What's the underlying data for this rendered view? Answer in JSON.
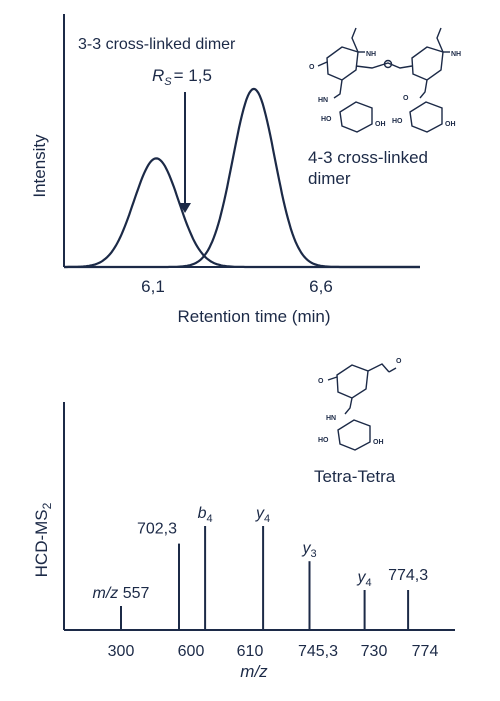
{
  "colors": {
    "ink": "#1c2a47",
    "background": "#ffffff"
  },
  "chart_data": [
    {
      "type": "line",
      "xlabel": "Retention time (min)",
      "ylabel": "Intensity",
      "x_ticks": [
        "6,1",
        "6,6"
      ],
      "x_tick_values": [
        6.1,
        6.6
      ],
      "xlim": [
        5.75,
        7.1
      ],
      "ylim": [
        0,
        1.05
      ],
      "series": [
        {
          "name": "3-3 cross-linked dimer",
          "peak_x": 6.1,
          "peak_height": 0.61,
          "width": 0.085
        },
        {
          "name": "4-3 cross-linked dimer",
          "peak_x": 6.47,
          "peak_height": 1.0,
          "width": 0.08
        }
      ],
      "annotations": [
        {
          "id": "resolution",
          "prefix": "R",
          "subscript": "S",
          "value": "= 1,5",
          "arrow_to_x": 6.3,
          "arrow_to_y": 0.28
        }
      ],
      "structure_labels": [
        "O",
        "NH",
        "HN",
        "HO",
        "OH",
        "O"
      ]
    },
    {
      "type": "bar",
      "ylabel": "HCD-MS",
      "ylabel_subscript": "2",
      "xlabel": "m/z",
      "x_ticks": [
        "300",
        "600",
        "610",
        "745,3",
        "730",
        "774"
      ],
      "ylim": [
        0,
        1.0
      ],
      "peaks": [
        {
          "position": 1.0,
          "value": 0.15,
          "label": "m/z 557",
          "label_italic_part": "m/z",
          "label_rest": " 557"
        },
        {
          "position": 2.0,
          "value": 0.54,
          "label": "702,3"
        },
        {
          "position": 2.45,
          "value": 0.65,
          "label": "b4",
          "ion": "b",
          "ion_sub": "4"
        },
        {
          "position": 3.45,
          "value": 0.65,
          "label": "y4",
          "ion": "y",
          "ion_sub": "4"
        },
        {
          "position": 4.25,
          "value": 0.43,
          "label": "y3",
          "ion": "y",
          "ion_sub": "3"
        },
        {
          "position": 5.2,
          "value": 0.25,
          "label": "y4",
          "ion": "y",
          "ion_sub": "4"
        },
        {
          "position": 5.95,
          "value": 0.25,
          "label": "774,3"
        }
      ],
      "structure_label": "Tetra-Tetra"
    }
  ]
}
